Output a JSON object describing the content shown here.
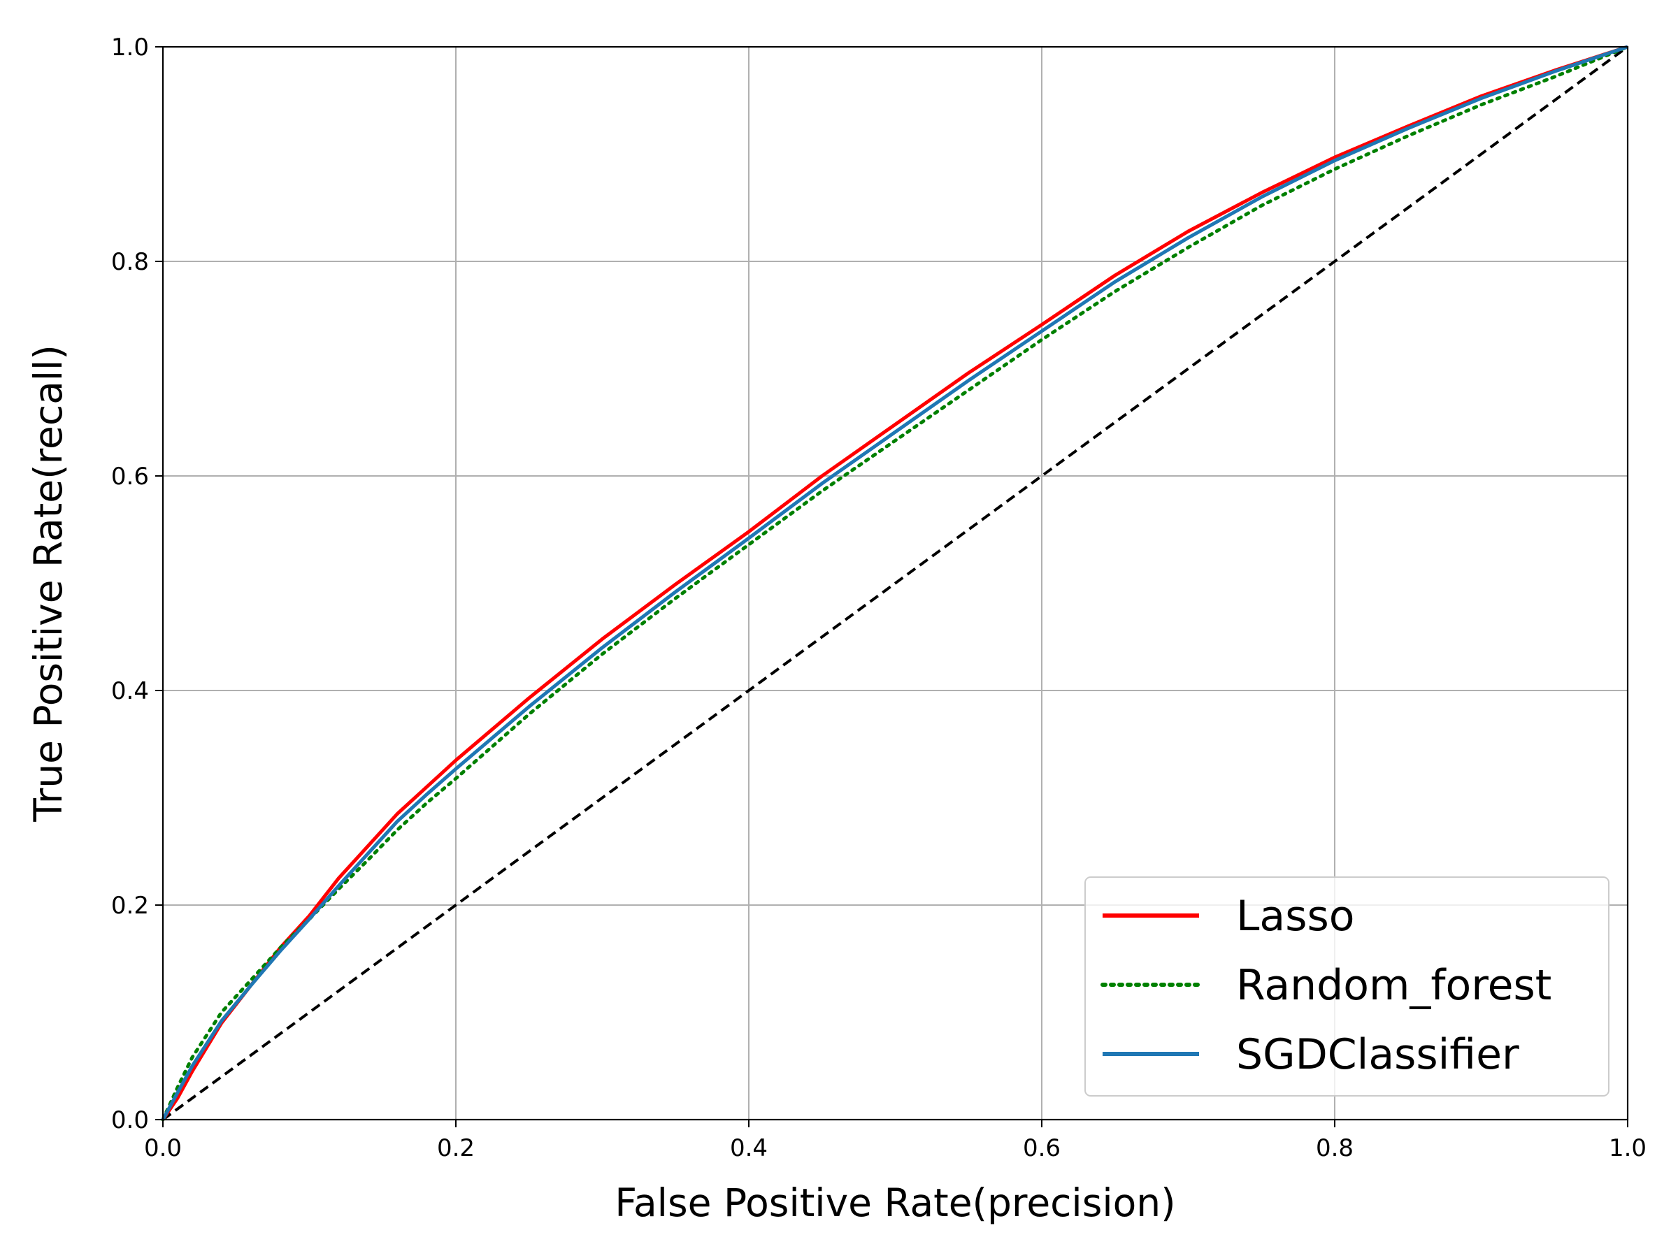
{
  "chart_data": {
    "type": "line",
    "title": "",
    "xlabel": "False Positive Rate(precision)",
    "ylabel": "True Positive Rate(recall)",
    "xlim": [
      0,
      1
    ],
    "ylim": [
      0,
      1
    ],
    "xticks": [
      "0.0",
      "0.2",
      "0.4",
      "0.6",
      "0.8",
      "1.0"
    ],
    "yticks": [
      "0.0",
      "0.2",
      "0.4",
      "0.6",
      "0.8",
      "1.0"
    ],
    "grid": true,
    "legend_position": "lower-right",
    "series": [
      {
        "name": "Lasso",
        "color": "#ff0000",
        "style": "solid",
        "x": [
          0,
          0.01,
          0.02,
          0.04,
          0.06,
          0.08,
          0.1,
          0.12,
          0.14,
          0.16,
          0.18,
          0.2,
          0.25,
          0.3,
          0.35,
          0.4,
          0.45,
          0.5,
          0.55,
          0.6,
          0.65,
          0.7,
          0.75,
          0.8,
          0.85,
          0.9,
          0.95,
          1.0
        ],
        "y": [
          0,
          0.02,
          0.045,
          0.09,
          0.125,
          0.16,
          0.19,
          0.225,
          0.255,
          0.285,
          0.31,
          0.335,
          0.393,
          0.448,
          0.499,
          0.548,
          0.6,
          0.648,
          0.696,
          0.741,
          0.787,
          0.828,
          0.864,
          0.897,
          0.926,
          0.954,
          0.978,
          1.0
        ]
      },
      {
        "name": "Random_forest",
        "color": "#008000",
        "style": "dotted",
        "x": [
          0,
          0.01,
          0.02,
          0.04,
          0.06,
          0.08,
          0.1,
          0.12,
          0.14,
          0.16,
          0.18,
          0.2,
          0.25,
          0.3,
          0.35,
          0.4,
          0.45,
          0.5,
          0.55,
          0.6,
          0.65,
          0.7,
          0.75,
          0.8,
          0.85,
          0.9,
          0.95,
          1.0
        ],
        "y": [
          0,
          0.03,
          0.058,
          0.1,
          0.13,
          0.16,
          0.187,
          0.215,
          0.242,
          0.27,
          0.295,
          0.318,
          0.378,
          0.434,
          0.486,
          0.536,
          0.586,
          0.633,
          0.68,
          0.727,
          0.772,
          0.813,
          0.852,
          0.886,
          0.917,
          0.946,
          0.972,
          1.0
        ]
      },
      {
        "name": "SGDClassifier",
        "color": "#1f77b4",
        "style": "solid",
        "x": [
          0,
          0.01,
          0.02,
          0.04,
          0.06,
          0.08,
          0.1,
          0.12,
          0.14,
          0.16,
          0.18,
          0.2,
          0.25,
          0.3,
          0.35,
          0.4,
          0.45,
          0.5,
          0.55,
          0.6,
          0.65,
          0.7,
          0.75,
          0.8,
          0.85,
          0.9,
          0.95,
          1.0
        ],
        "y": [
          0,
          0.025,
          0.05,
          0.092,
          0.125,
          0.157,
          0.187,
          0.218,
          0.248,
          0.278,
          0.303,
          0.327,
          0.385,
          0.44,
          0.492,
          0.542,
          0.593,
          0.641,
          0.689,
          0.735,
          0.781,
          0.822,
          0.86,
          0.894,
          0.924,
          0.952,
          0.977,
          1.0
        ]
      },
      {
        "color": "#000000",
        "style": "dashed",
        "x": [
          0,
          1
        ],
        "y": [
          0,
          1
        ]
      }
    ]
  }
}
